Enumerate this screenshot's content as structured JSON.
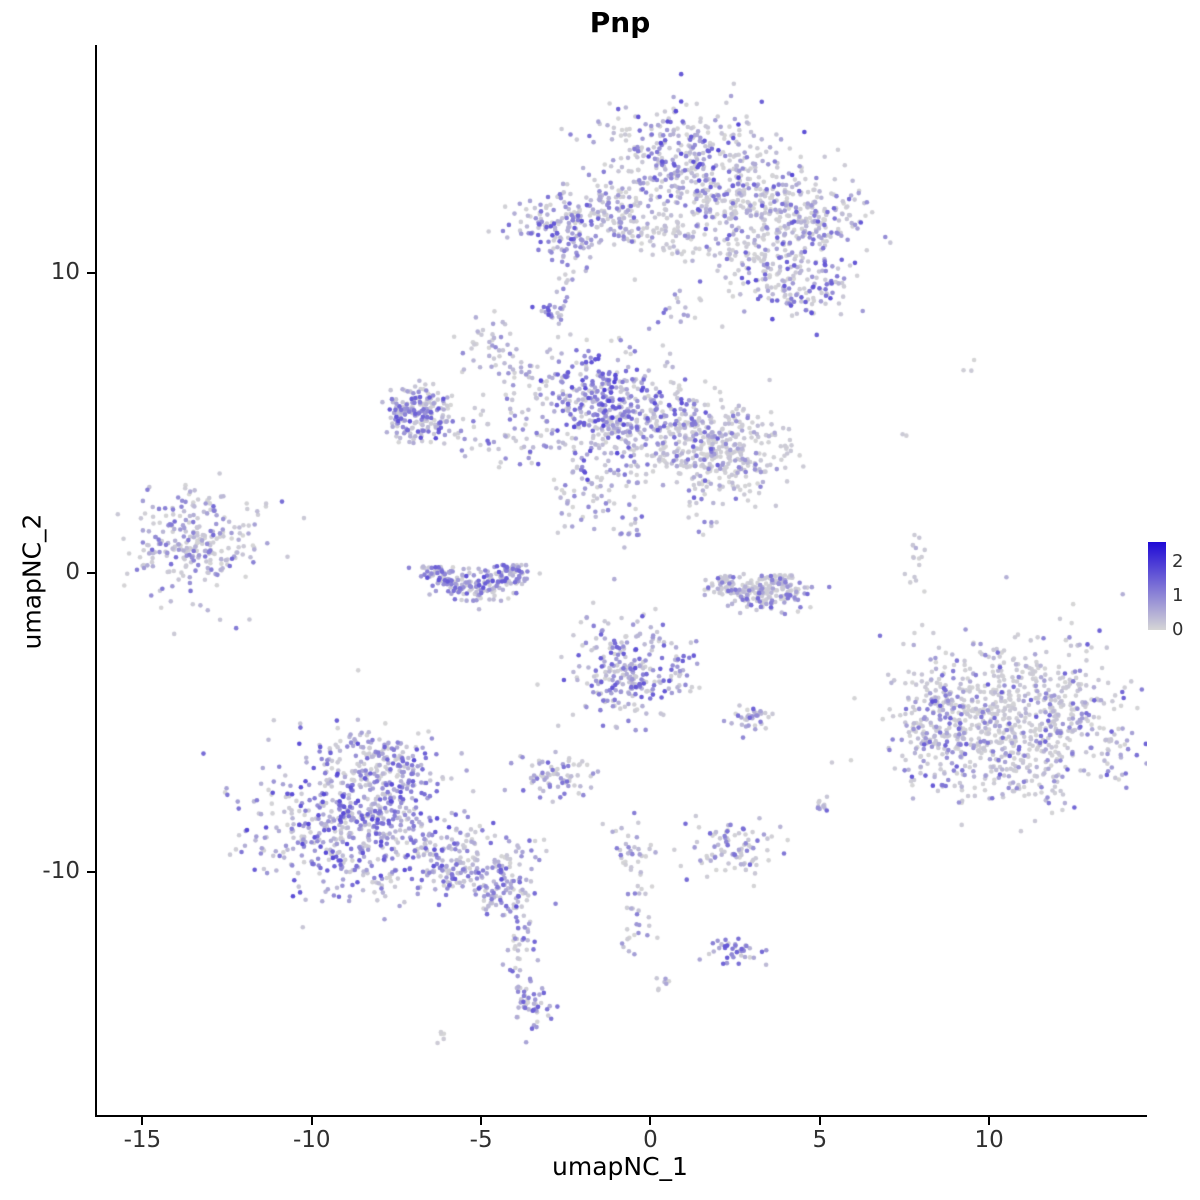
{
  "chart_data": {
    "type": "scatter",
    "title": "Pnp",
    "xlabel": "umapNC_1",
    "ylabel": "umapNC_2",
    "xlim": [
      -16.4,
      14.6
    ],
    "ylim": [
      -18.1,
      17.6
    ],
    "x_ticks": [
      -15,
      -10,
      -5,
      0,
      5,
      10
    ],
    "y_ticks": [
      -10,
      0,
      10
    ],
    "grid": "off",
    "legend_position": "right",
    "legend_ticks": [
      2,
      1,
      0
    ],
    "color_scale": {
      "low_color": "#D6D6D6",
      "high_color": "#1F0AD6",
      "vmin": 0,
      "vmax": 2.6
    },
    "point_count_note": "UMAP feature plot of Pnp expression; clusters summarized as gaussian/ring blobs",
    "clusters": [
      {
        "x": 0.9,
        "y": 13.8,
        "sx": 1.25,
        "sy": 1.0,
        "n": 330,
        "gray": 0.45,
        "vmax": 1.8
      },
      {
        "x": 2.8,
        "y": 12.4,
        "sx": 1.2,
        "sy": 0.9,
        "n": 280,
        "gray": 0.65,
        "vmax": 1.5
      },
      {
        "x": 4.6,
        "y": 11.8,
        "sx": 0.9,
        "sy": 0.7,
        "n": 170,
        "gray": 0.6,
        "vmax": 1.6
      },
      {
        "x": -2.7,
        "y": 11.6,
        "sx": 0.7,
        "sy": 0.55,
        "n": 130,
        "gray": 0.35,
        "vmax": 1.7
      },
      {
        "x": -1.2,
        "y": 12.0,
        "sx": 0.8,
        "sy": 0.55,
        "n": 110,
        "gray": 0.5,
        "vmax": 1.5
      },
      {
        "x": 0.2,
        "y": 11.2,
        "sx": 0.8,
        "sy": 0.4,
        "n": 70,
        "gray": 0.55,
        "vmax": 1.3
      },
      {
        "x": 4.3,
        "y": 9.6,
        "sx": 0.9,
        "sy": 0.6,
        "n": 150,
        "gray": 0.55,
        "vmax": 1.7
      },
      {
        "x": 2.9,
        "y": 10.5,
        "sx": 0.5,
        "sy": 0.4,
        "n": 40,
        "gray": 0.75,
        "vmax": 1.0
      },
      {
        "x": -2.9,
        "y": 8.7,
        "sx": 0.25,
        "sy": 0.25,
        "n": 25,
        "gray": 0.15,
        "vmax": 1.9
      },
      {
        "x": -6.9,
        "y": 5.3,
        "shape": "ring",
        "r0": 0.55,
        "rw": 0.25,
        "a0": 0,
        "a1": 360,
        "sx": 1.1,
        "sy": 1.0,
        "n": 160,
        "gray": 0.4,
        "vmax": 1.7
      },
      {
        "x": -6.9,
        "y": 5.3,
        "sx": 0.5,
        "sy": 0.45,
        "n": 40,
        "gray": 0.5,
        "vmax": 1.5
      },
      {
        "x": -4.7,
        "y": 7.3,
        "sx": 0.45,
        "sy": 0.55,
        "n": 45,
        "gray": 0.65,
        "vmax": 1.1
      },
      {
        "x": -4.4,
        "y": 4.5,
        "sx": 0.9,
        "sy": 0.5,
        "n": 55,
        "gray": 0.5,
        "vmax": 1.4
      },
      {
        "x": -3.7,
        "y": 6.3,
        "sx": 0.5,
        "sy": 0.6,
        "n": 35,
        "gray": 0.55,
        "vmax": 1.2
      },
      {
        "x": -1.4,
        "y": 5.6,
        "sx": 0.95,
        "sy": 0.95,
        "n": 380,
        "gray": 0.3,
        "vmax": 1.9
      },
      {
        "x": 0.7,
        "y": 4.7,
        "sx": 1.0,
        "sy": 0.8,
        "n": 240,
        "gray": 0.55,
        "vmax": 1.6
      },
      {
        "x": 2.2,
        "y": 3.9,
        "sx": 0.95,
        "sy": 0.7,
        "n": 260,
        "gray": 0.78,
        "vmax": 1.2
      },
      {
        "x": -2.1,
        "y": 3.3,
        "sx": 0.12,
        "sy": 0.12,
        "n": 6,
        "gray": 0.0,
        "vmax": 2.6
      },
      {
        "x": -1.7,
        "y": 2.7,
        "sx": 0.7,
        "sy": 0.6,
        "n": 55,
        "gray": 0.55,
        "vmax": 1.2
      },
      {
        "x": -13.5,
        "y": 1.0,
        "sx": 1.0,
        "sy": 0.85,
        "n": 260,
        "gray": 0.55,
        "vmax": 1.4
      },
      {
        "x": -11.2,
        "y": 2.1,
        "sx": 0.4,
        "sy": 0.3,
        "n": 5,
        "gray": 0.8,
        "vmax": 0.6
      },
      {
        "x": -5.3,
        "y": 0.25,
        "shape": "ring",
        "r0": 0.95,
        "rw": 0.28,
        "a0": 180,
        "a1": 360,
        "sx": 1.25,
        "sy": 0.85,
        "n": 230,
        "gray": 0.4,
        "vmax": 1.7
      },
      {
        "x": 2.9,
        "y": 0.0,
        "shape": "ring",
        "r0": 0.85,
        "rw": 0.25,
        "a0": 190,
        "a1": 355,
        "sx": 1.15,
        "sy": 0.9,
        "n": 200,
        "gray": 0.72,
        "vmax": 1.4
      },
      {
        "x": 3.8,
        "y": -0.9,
        "sx": 0.5,
        "sy": 0.3,
        "n": 40,
        "gray": 0.35,
        "vmax": 1.6
      },
      {
        "x": 7.8,
        "y": 0.2,
        "sx": 0.15,
        "sy": 0.9,
        "n": 16,
        "gray": 0.85,
        "vmax": 0.8
      },
      {
        "x": 10.7,
        "y": -4.9,
        "sx": 1.7,
        "sy": 1.35,
        "n": 820,
        "gray": 0.68,
        "vmax": 1.5
      },
      {
        "x": 8.4,
        "y": -5.3,
        "sx": 0.55,
        "sy": 1.0,
        "n": 140,
        "gray": 0.45,
        "vmax": 1.7
      },
      {
        "x": -0.6,
        "y": -3.3,
        "sx": 0.85,
        "sy": 0.8,
        "n": 270,
        "gray": 0.4,
        "vmax": 1.7
      },
      {
        "x": 2.9,
        "y": -4.9,
        "sx": 0.3,
        "sy": 0.2,
        "n": 35,
        "gray": 0.25,
        "vmax": 1.5
      },
      {
        "x": -2.8,
        "y": -6.8,
        "sx": 0.55,
        "sy": 0.35,
        "n": 70,
        "gray": 0.5,
        "vmax": 1.4
      },
      {
        "x": 5.0,
        "y": -7.8,
        "sx": 0.15,
        "sy": 0.15,
        "n": 10,
        "gray": 0.4,
        "vmax": 1.4
      },
      {
        "x": -8.8,
        "y": -8.3,
        "sx": 1.5,
        "sy": 1.3,
        "n": 620,
        "gray": 0.35,
        "vmax": 1.8
      },
      {
        "x": -8.1,
        "y": -6.2,
        "sx": 0.9,
        "sy": 0.6,
        "n": 130,
        "gray": 0.45,
        "vmax": 1.6
      },
      {
        "x": -5.8,
        "y": -9.7,
        "sx": 1.0,
        "sy": 0.6,
        "n": 180,
        "gray": 0.4,
        "vmax": 1.6
      },
      {
        "x": -4.4,
        "y": -10.6,
        "sx": 0.45,
        "sy": 0.5,
        "n": 90,
        "gray": 0.3,
        "vmax": 1.7
      },
      {
        "x": -3.9,
        "y": -12.3,
        "sx": 0.2,
        "sy": 0.7,
        "n": 35,
        "gray": 0.35,
        "vmax": 1.5
      },
      {
        "x": -3.6,
        "y": -14.4,
        "sx": 0.3,
        "sy": 0.45,
        "n": 45,
        "gray": 0.3,
        "vmax": 1.5
      },
      {
        "x": -6.3,
        "y": -15.5,
        "sx": 0.12,
        "sy": 0.12,
        "n": 5,
        "gray": 0.5,
        "vmax": 1.0
      },
      {
        "x": -0.7,
        "y": -9.2,
        "sx": 0.3,
        "sy": 0.5,
        "n": 30,
        "gray": 0.6,
        "vmax": 1.2
      },
      {
        "x": -0.5,
        "y": -11.3,
        "sx": 0.25,
        "sy": 0.8,
        "n": 30,
        "gray": 0.55,
        "vmax": 1.3
      },
      {
        "x": 0.4,
        "y": -13.7,
        "sx": 0.15,
        "sy": 0.15,
        "n": 7,
        "gray": 0.5,
        "vmax": 1.2
      },
      {
        "x": 2.3,
        "y": -9.2,
        "sx": 0.7,
        "sy": 0.45,
        "n": 90,
        "gray": 0.6,
        "vmax": 1.4
      },
      {
        "x": 2.4,
        "y": -12.6,
        "sx": 0.35,
        "sy": 0.2,
        "n": 40,
        "gray": 0.2,
        "vmax": 1.6
      },
      {
        "x": 9.3,
        "y": 6.8,
        "sx": 0.2,
        "sy": 0.15,
        "n": 3,
        "gray": 0.9,
        "vmax": 0.4
      },
      {
        "x": 7.5,
        "y": 4.5,
        "sx": 0.1,
        "sy": 0.1,
        "n": 2,
        "gray": 0.9,
        "vmax": 0.3
      },
      {
        "x": -2.4,
        "y": 9.8,
        "sx": 0.3,
        "sy": 0.5,
        "n": 12,
        "gray": 0.5,
        "vmax": 1.2
      },
      {
        "x": 0.8,
        "y": 9.3,
        "sx": 0.4,
        "sy": 0.8,
        "n": 18,
        "gray": 0.5,
        "vmax": 1.3
      },
      {
        "x": 1.6,
        "y": 2.0,
        "sx": 0.5,
        "sy": 0.6,
        "n": 18,
        "gray": 0.6,
        "vmax": 1.1
      },
      {
        "x": -0.8,
        "y": 1.3,
        "sx": 0.3,
        "sy": 0.7,
        "n": 15,
        "gray": 0.5,
        "vmax": 1.3
      }
    ]
  }
}
